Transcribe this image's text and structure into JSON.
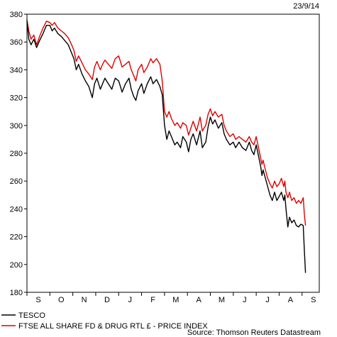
{
  "chart_data": {
    "type": "line",
    "date": "23/9/14",
    "source": "Source: Thomson Reuters Datastream",
    "ylim": [
      180,
      380
    ],
    "yticks": [
      180,
      200,
      220,
      240,
      260,
      280,
      300,
      320,
      340,
      360,
      380
    ],
    "x_labels": [
      "S",
      "O",
      "N",
      "D",
      "J",
      "F",
      "M",
      "A",
      "M",
      "J",
      "J",
      "A",
      "S"
    ],
    "x_domain": [
      0,
      12.75
    ],
    "series": [
      {
        "name": "TESCO",
        "color": "#000000",
        "points": [
          [
            0.0,
            375
          ],
          [
            0.08,
            362
          ],
          [
            0.18,
            358
          ],
          [
            0.3,
            362
          ],
          [
            0.42,
            356
          ],
          [
            0.55,
            361
          ],
          [
            0.7,
            366
          ],
          [
            0.85,
            372
          ],
          [
            1.0,
            372
          ],
          [
            1.1,
            368
          ],
          [
            1.2,
            370
          ],
          [
            1.35,
            366
          ],
          [
            1.5,
            364
          ],
          [
            1.65,
            361
          ],
          [
            1.8,
            358
          ],
          [
            1.95,
            352
          ],
          [
            2.05,
            348
          ],
          [
            2.15,
            340
          ],
          [
            2.25,
            344
          ],
          [
            2.4,
            337
          ],
          [
            2.55,
            332
          ],
          [
            2.7,
            328
          ],
          [
            2.85,
            320
          ],
          [
            2.95,
            330
          ],
          [
            3.05,
            334
          ],
          [
            3.2,
            326
          ],
          [
            3.3,
            330
          ],
          [
            3.4,
            334
          ],
          [
            3.55,
            330
          ],
          [
            3.7,
            326
          ],
          [
            3.85,
            334
          ],
          [
            4.0,
            332
          ],
          [
            4.15,
            324
          ],
          [
            4.3,
            330
          ],
          [
            4.45,
            334
          ],
          [
            4.55,
            326
          ],
          [
            4.65,
            321
          ],
          [
            4.75,
            318
          ],
          [
            4.85,
            325
          ],
          [
            5.0,
            330
          ],
          [
            5.1,
            323
          ],
          [
            5.25,
            330
          ],
          [
            5.4,
            335
          ],
          [
            5.5,
            330
          ],
          [
            5.65,
            333
          ],
          [
            5.8,
            328
          ],
          [
            5.9,
            322
          ],
          [
            6.0,
            300
          ],
          [
            6.1,
            290
          ],
          [
            6.2,
            296
          ],
          [
            6.3,
            292
          ],
          [
            6.45,
            286
          ],
          [
            6.55,
            288
          ],
          [
            6.7,
            284
          ],
          [
            6.8,
            292
          ],
          [
            6.95,
            288
          ],
          [
            7.05,
            281
          ],
          [
            7.15,
            290
          ],
          [
            7.25,
            294
          ],
          [
            7.4,
            286
          ],
          [
            7.55,
            296
          ],
          [
            7.65,
            284
          ],
          [
            7.8,
            288
          ],
          [
            7.9,
            299
          ],
          [
            8.0,
            306
          ],
          [
            8.1,
            301
          ],
          [
            8.2,
            304
          ],
          [
            8.35,
            298
          ],
          [
            8.5,
            302
          ],
          [
            8.6,
            294
          ],
          [
            8.7,
            290
          ],
          [
            8.85,
            286
          ],
          [
            9.0,
            288
          ],
          [
            9.1,
            284
          ],
          [
            9.25,
            288
          ],
          [
            9.4,
            284
          ],
          [
            9.55,
            282
          ],
          [
            9.7,
            288
          ],
          [
            9.8,
            282
          ],
          [
            9.9,
            279
          ],
          [
            10.0,
            286
          ],
          [
            10.1,
            278
          ],
          [
            10.2,
            270
          ],
          [
            10.25,
            264
          ],
          [
            10.3,
            268
          ],
          [
            10.4,
            262
          ],
          [
            10.5,
            256
          ],
          [
            10.6,
            250
          ],
          [
            10.7,
            246
          ],
          [
            10.8,
            252
          ],
          [
            10.9,
            246
          ],
          [
            11.0,
            249
          ],
          [
            11.1,
            252
          ],
          [
            11.2,
            246
          ],
          [
            11.25,
            250
          ],
          [
            11.3,
            240
          ],
          [
            11.38,
            227
          ],
          [
            11.45,
            234
          ],
          [
            11.55,
            230
          ],
          [
            11.65,
            232
          ],
          [
            11.75,
            228
          ],
          [
            11.85,
            227
          ],
          [
            11.95,
            229
          ],
          [
            12.05,
            228
          ],
          [
            12.1,
            210
          ],
          [
            12.15,
            194
          ]
        ]
      },
      {
        "name": "FTSE ALL SHARE FD & DRUG RTL £ - PRICE INDEX",
        "color": "#e00000",
        "points": [
          [
            0.0,
            376
          ],
          [
            0.08,
            368
          ],
          [
            0.18,
            362
          ],
          [
            0.3,
            365
          ],
          [
            0.42,
            358
          ],
          [
            0.55,
            364
          ],
          [
            0.7,
            370
          ],
          [
            0.85,
            375
          ],
          [
            1.0,
            374
          ],
          [
            1.1,
            372
          ],
          [
            1.2,
            374
          ],
          [
            1.35,
            370
          ],
          [
            1.5,
            368
          ],
          [
            1.65,
            366
          ],
          [
            1.8,
            363
          ],
          [
            1.95,
            358
          ],
          [
            2.05,
            354
          ],
          [
            2.15,
            346
          ],
          [
            2.25,
            350
          ],
          [
            2.4,
            345
          ],
          [
            2.55,
            340
          ],
          [
            2.7,
            337
          ],
          [
            2.85,
            333
          ],
          [
            2.95,
            342
          ],
          [
            3.05,
            346
          ],
          [
            3.2,
            340
          ],
          [
            3.3,
            344
          ],
          [
            3.4,
            347
          ],
          [
            3.55,
            344
          ],
          [
            3.7,
            341
          ],
          [
            3.85,
            348
          ],
          [
            4.0,
            350
          ],
          [
            4.15,
            342
          ],
          [
            4.3,
            344
          ],
          [
            4.45,
            346
          ],
          [
            4.55,
            340
          ],
          [
            4.65,
            336
          ],
          [
            4.75,
            332
          ],
          [
            4.85,
            340
          ],
          [
            5.0,
            344
          ],
          [
            5.1,
            338
          ],
          [
            5.25,
            342
          ],
          [
            5.4,
            348
          ],
          [
            5.5,
            345
          ],
          [
            5.65,
            348
          ],
          [
            5.8,
            344
          ],
          [
            5.9,
            332
          ],
          [
            6.0,
            310
          ],
          [
            6.1,
            306
          ],
          [
            6.2,
            310
          ],
          [
            6.3,
            305
          ],
          [
            6.45,
            300
          ],
          [
            6.55,
            302
          ],
          [
            6.7,
            298
          ],
          [
            6.8,
            302
          ],
          [
            6.95,
            300
          ],
          [
            7.05,
            293
          ],
          [
            7.15,
            298
          ],
          [
            7.25,
            303
          ],
          [
            7.4,
            296
          ],
          [
            7.55,
            306
          ],
          [
            7.65,
            296
          ],
          [
            7.8,
            300
          ],
          [
            7.9,
            308
          ],
          [
            8.0,
            312
          ],
          [
            8.1,
            307
          ],
          [
            8.2,
            310
          ],
          [
            8.35,
            306
          ],
          [
            8.5,
            308
          ],
          [
            8.6,
            300
          ],
          [
            8.7,
            296
          ],
          [
            8.85,
            292
          ],
          [
            9.0,
            294
          ],
          [
            9.1,
            290
          ],
          [
            9.25,
            292
          ],
          [
            9.4,
            290
          ],
          [
            9.55,
            288
          ],
          [
            9.7,
            292
          ],
          [
            9.8,
            288
          ],
          [
            9.9,
            286
          ],
          [
            10.0,
            292
          ],
          [
            10.1,
            284
          ],
          [
            10.2,
            276
          ],
          [
            10.25,
            272
          ],
          [
            10.3,
            275
          ],
          [
            10.4,
            268
          ],
          [
            10.5,
            262
          ],
          [
            10.6,
            258
          ],
          [
            10.7,
            255
          ],
          [
            10.8,
            260
          ],
          [
            10.9,
            256
          ],
          [
            11.0,
            258
          ],
          [
            11.1,
            262
          ],
          [
            11.2,
            256
          ],
          [
            11.25,
            260
          ],
          [
            11.3,
            252
          ],
          [
            11.38,
            248
          ],
          [
            11.45,
            252
          ],
          [
            11.55,
            246
          ],
          [
            11.65,
            248
          ],
          [
            11.75,
            244
          ],
          [
            11.85,
            246
          ],
          [
            11.95,
            244
          ],
          [
            12.05,
            248
          ],
          [
            12.1,
            236
          ],
          [
            12.15,
            228
          ]
        ]
      }
    ]
  }
}
